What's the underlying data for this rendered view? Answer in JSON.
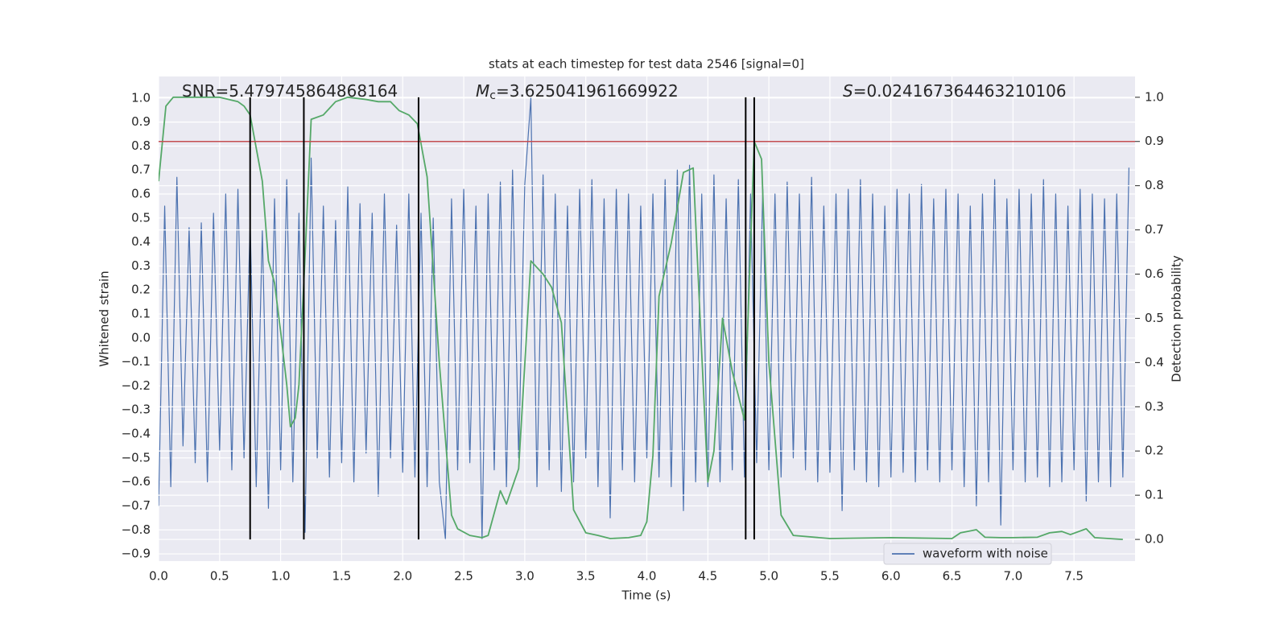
{
  "chart_data": {
    "type": "line",
    "title": "stats at each timestep for test data 2546 [signal=0]",
    "xlabel": "Time (s)",
    "ylabel": "Whitened strain",
    "y2label": "Detection probability",
    "xlim": [
      0,
      8.0
    ],
    "ylim": [
      -0.93,
      1.09
    ],
    "y2lim": [
      -0.049,
      1.047
    ],
    "xticks": [
      {
        "value": 0,
        "label": "0.0"
      },
      0.5,
      {
        "value": 1,
        "label": "1.0"
      },
      1.5,
      {
        "value": 2,
        "label": "2.0"
      },
      2.5,
      {
        "value": 3,
        "label": "3.0"
      },
      3.5,
      {
        "value": 4,
        "label": "4.0"
      },
      4.5,
      {
        "value": 5,
        "label": "5.0"
      },
      5.5,
      {
        "value": 6,
        "label": "6.0"
      },
      6.5,
      {
        "value": 7,
        "label": "7.0"
      },
      7.5
    ],
    "yticks": [
      {
        "value": -0.9,
        "label": "−0.9"
      },
      {
        "value": -0.8,
        "label": "−0.8"
      },
      {
        "value": -0.7,
        "label": "−0.7"
      },
      {
        "value": -0.6,
        "label": "−0.6"
      },
      {
        "value": -0.5,
        "label": "−0.5"
      },
      {
        "value": -0.4,
        "label": "−0.4"
      },
      {
        "value": -0.3,
        "label": "−0.3"
      },
      {
        "value": -0.2,
        "label": "−0.2"
      },
      {
        "value": -0.1,
        "label": "−0.1"
      },
      {
        "value": 0,
        "label": "0.0"
      },
      0.1,
      0.2,
      0.3,
      0.4,
      0.5,
      0.6,
      0.7,
      0.8,
      0.9,
      {
        "value": 1,
        "label": "1.0"
      }
    ],
    "y2ticks": [
      {
        "value": 0,
        "label": "0.0"
      },
      0.1,
      0.2,
      0.3,
      0.4,
      0.5,
      0.6,
      0.7,
      0.8,
      0.9,
      {
        "value": 1,
        "label": "1.0"
      }
    ],
    "grid": true,
    "legend": "lower right",
    "annotations": [
      {
        "text": "SNR=5.479745864868164"
      },
      {
        "symbol": "M",
        "subscript": "c",
        "text": "=3.625041961669922"
      },
      {
        "symbol": "S",
        "text": "=0.024167364463210106"
      }
    ],
    "hlines": [
      {
        "value": 0.9,
        "axis": "y2",
        "color": "#c44e52"
      }
    ],
    "vlines": {
      "x": [
        0.75,
        1.19,
        2.13,
        4.81,
        4.88
      ],
      "axis": "y2",
      "range": [
        0,
        1
      ],
      "color": "#000000"
    },
    "series": [
      {
        "name": "waveform with noise",
        "color": "#4c72b0",
        "x": [
          0,
          0.05,
          0.1,
          0.15,
          0.2,
          0.25,
          0.3,
          0.35,
          0.4,
          0.45,
          0.5,
          0.55,
          0.6,
          0.65,
          0.7,
          0.75,
          0.8,
          0.85,
          0.9,
          0.95,
          1.0,
          1.05,
          1.1,
          1.15,
          1.2,
          1.25,
          1.3,
          1.35,
          1.4,
          1.45,
          1.5,
          1.55,
          1.6,
          1.65,
          1.7,
          1.75,
          1.8,
          1.85,
          1.9,
          1.95,
          2.0,
          2.05,
          2.1,
          2.15,
          2.2,
          2.25,
          2.3,
          2.35,
          2.4,
          2.45,
          2.5,
          2.55,
          2.6,
          2.65,
          2.7,
          2.75,
          2.8,
          2.85,
          2.9,
          2.95,
          3.0,
          3.05,
          3.1,
          3.15,
          3.2,
          3.25,
          3.3,
          3.35,
          3.4,
          3.45,
          3.5,
          3.55,
          3.6,
          3.65,
          3.7,
          3.75,
          3.8,
          3.85,
          3.9,
          3.95,
          4.0,
          4.05,
          4.1,
          4.15,
          4.2,
          4.25,
          4.3,
          4.35,
          4.4,
          4.45,
          4.5,
          4.55,
          4.6,
          4.65,
          4.7,
          4.75,
          4.8,
          4.85,
          4.9,
          4.95,
          5.0,
          5.05,
          5.1,
          5.15,
          5.2,
          5.25,
          5.3,
          5.35,
          5.4,
          5.45,
          5.5,
          5.55,
          5.6,
          5.65,
          5.7,
          5.75,
          5.8,
          5.85,
          5.9,
          5.95,
          6.0,
          6.05,
          6.1,
          6.15,
          6.2,
          6.25,
          6.3,
          6.35,
          6.4,
          6.45,
          6.5,
          6.55,
          6.6,
          6.65,
          6.7,
          6.75,
          6.8,
          6.85,
          6.9,
          6.95,
          7.0,
          7.05,
          7.1,
          7.15,
          7.2,
          7.25,
          7.3,
          7.35,
          7.4,
          7.45,
          7.5,
          7.55,
          7.6,
          7.65,
          7.7,
          7.75,
          7.8,
          7.85,
          7.9,
          7.95
        ],
        "values": [
          -0.7,
          0.55,
          -0.62,
          0.67,
          -0.45,
          0.46,
          -0.52,
          0.48,
          -0.6,
          0.52,
          -0.47,
          0.6,
          -0.55,
          0.62,
          -0.5,
          0.48,
          -0.62,
          0.45,
          -0.71,
          0.58,
          -0.55,
          0.66,
          -0.6,
          0.52,
          -0.81,
          0.75,
          -0.5,
          0.55,
          -0.58,
          0.49,
          -0.52,
          0.63,
          -0.6,
          0.56,
          -0.48,
          0.52,
          -0.66,
          0.6,
          -0.5,
          0.47,
          -0.56,
          0.6,
          -0.58,
          0.52,
          -0.62,
          0.5,
          -0.6,
          -0.84,
          0.58,
          -0.55,
          0.62,
          -0.52,
          0.55,
          -0.84,
          0.6,
          -0.55,
          0.65,
          -0.62,
          0.7,
          -0.5,
          0.64,
          1.0,
          -0.62,
          0.68,
          -0.55,
          0.6,
          -0.64,
          0.55,
          -0.6,
          0.62,
          -0.5,
          0.66,
          -0.62,
          0.58,
          -0.75,
          0.62,
          -0.55,
          0.6,
          -0.6,
          0.55,
          -0.5,
          0.6,
          -0.58,
          0.66,
          -0.62,
          0.7,
          -0.72,
          0.72,
          -0.6,
          0.6,
          -0.62,
          0.68,
          -0.6,
          0.58,
          -0.55,
          0.66,
          -0.58,
          0.6,
          -0.52,
          0.62,
          -0.55,
          0.6,
          -0.58,
          0.65,
          -0.5,
          0.6,
          -0.55,
          0.67,
          -0.6,
          0.55,
          -0.56,
          0.6,
          -0.72,
          0.62,
          -0.55,
          0.66,
          -0.6,
          0.6,
          -0.62,
          0.55,
          -0.58,
          0.62,
          -0.56,
          0.6,
          -0.6,
          0.64,
          -0.55,
          0.58,
          -0.6,
          0.62,
          -0.55,
          0.6,
          -0.62,
          0.55,
          -0.7,
          0.6,
          -0.6,
          0.66,
          -0.78,
          0.58,
          -0.55,
          0.62,
          -0.6,
          0.6,
          -0.58,
          0.66,
          -0.62,
          0.6,
          -0.6,
          0.55,
          -0.55,
          0.62,
          -0.68,
          0.6,
          -0.6,
          0.58,
          -0.62,
          0.6,
          -0.58,
          0.71
        ]
      },
      {
        "axis": "y2",
        "color": "#55a868",
        "x": [
          0,
          0.06,
          0.12,
          0.5,
          0.65,
          0.7,
          0.75,
          0.85,
          0.9,
          0.95,
          1.0,
          1.05,
          1.08,
          1.12,
          1.15,
          1.2,
          1.25,
          1.35,
          1.45,
          1.55,
          1.7,
          1.8,
          1.9,
          1.97,
          2.05,
          2.12,
          2.2,
          2.3,
          2.4,
          2.45,
          2.55,
          2.65,
          2.7,
          2.8,
          2.85,
          2.95,
          3.05,
          3.15,
          3.22,
          3.3,
          3.4,
          3.5,
          3.6,
          3.7,
          3.85,
          3.95,
          4.0,
          4.05,
          4.1,
          4.2,
          4.3,
          4.38,
          4.45,
          4.5,
          4.55,
          4.62,
          4.7,
          4.8,
          4.88,
          4.94,
          5.0,
          5.1,
          5.2,
          5.5,
          6.0,
          6.5,
          6.57,
          6.7,
          6.77,
          6.9,
          7.0,
          7.2,
          7.3,
          7.4,
          7.47,
          7.6,
          7.67,
          7.9
        ],
        "values": [
          0.81,
          0.98,
          1.0,
          1.0,
          0.99,
          0.98,
          0.96,
          0.81,
          0.63,
          0.58,
          0.47,
          0.35,
          0.255,
          0.275,
          0.35,
          0.64,
          0.95,
          0.96,
          0.99,
          1.0,
          0.995,
          0.99,
          0.99,
          0.97,
          0.96,
          0.94,
          0.82,
          0.4,
          0.055,
          0.024,
          0.009,
          0.004,
          0.009,
          0.11,
          0.08,
          0.16,
          0.63,
          0.6,
          0.57,
          0.49,
          0.067,
          0.015,
          0.009,
          0.002,
          0.004,
          0.009,
          0.04,
          0.19,
          0.55,
          0.67,
          0.83,
          0.84,
          0.42,
          0.13,
          0.2,
          0.5,
          0.38,
          0.27,
          0.9,
          0.86,
          0.4,
          0.055,
          0.009,
          0.002,
          0.004,
          0.002,
          0.015,
          0.022,
          0.005,
          0.004,
          0.004,
          0.005,
          0.015,
          0.018,
          0.011,
          0.024,
          0.004,
          0.0
        ]
      }
    ]
  }
}
